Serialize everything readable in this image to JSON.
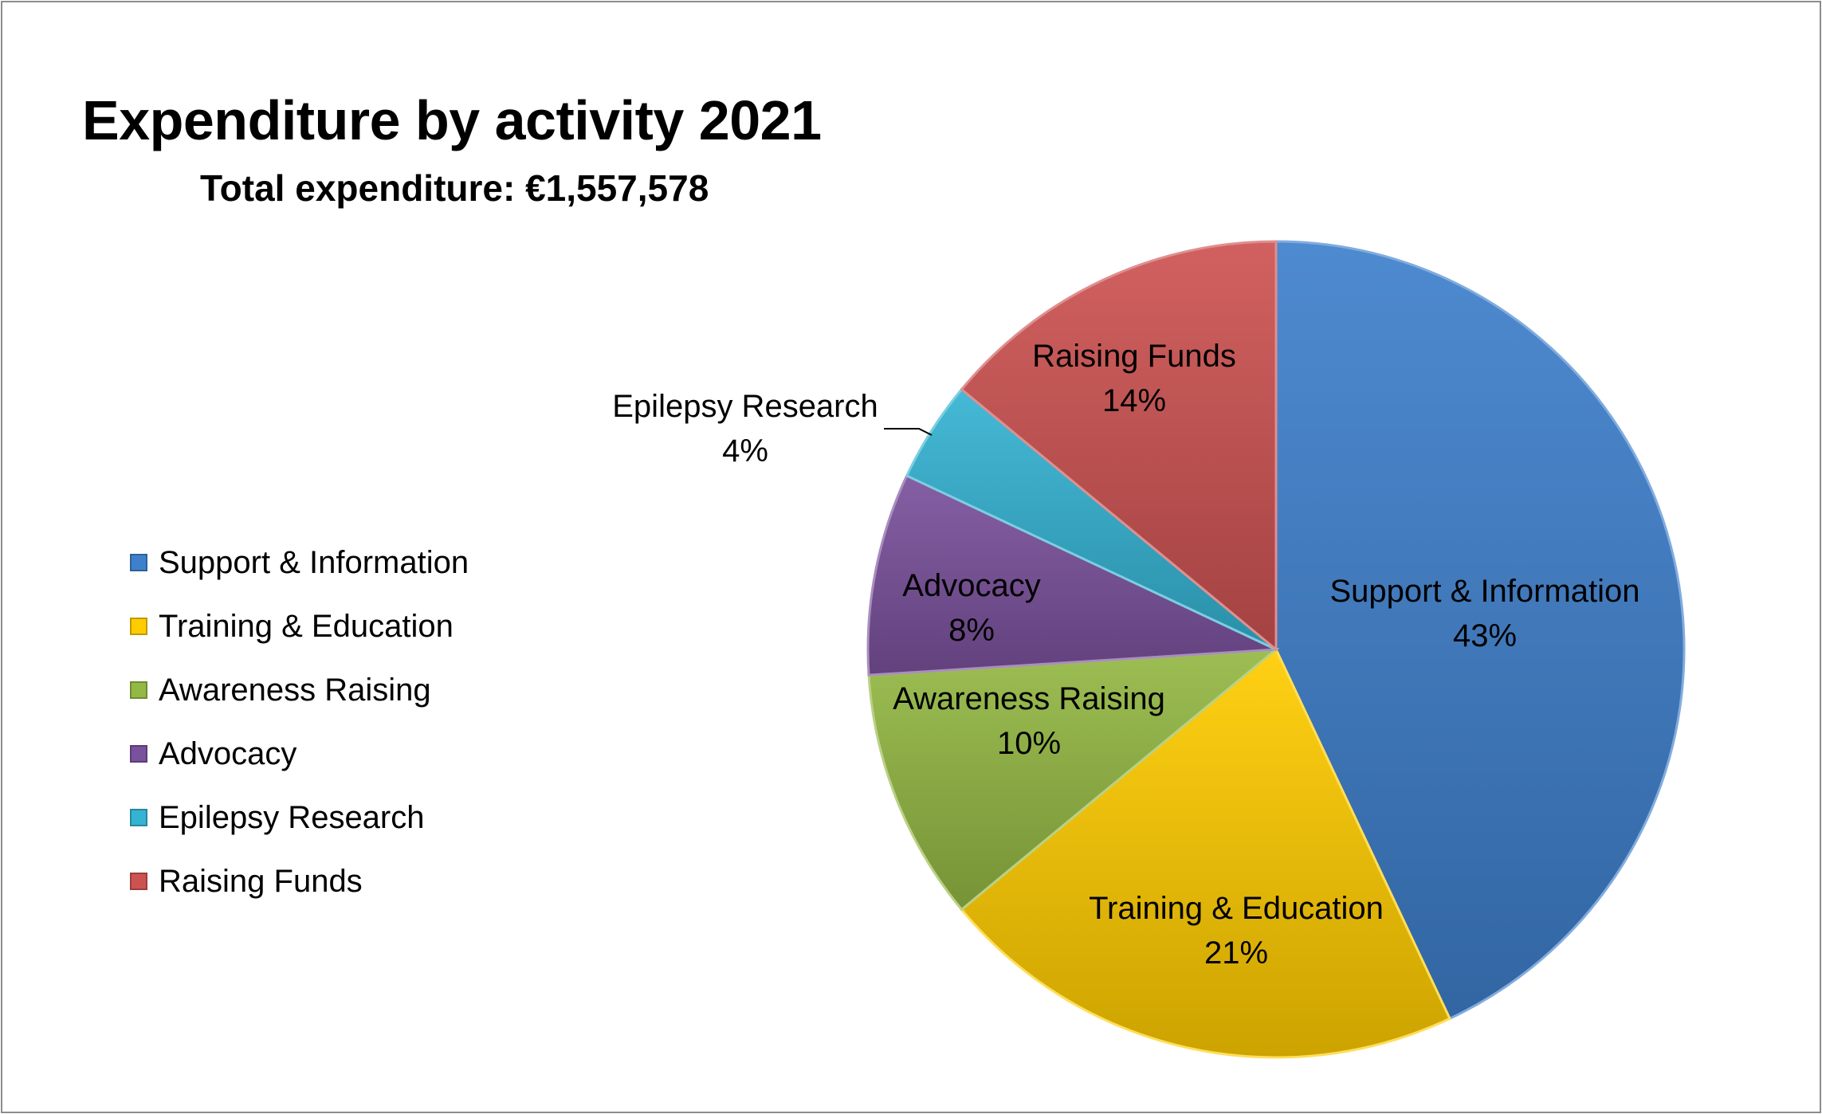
{
  "chart_data": {
    "type": "pie",
    "title": "Expenditure by activity 2021",
    "subtitle": "Total expenditure: €1,557,578",
    "categories": [
      "Support & Information",
      "Training & Education",
      "Awareness Raising",
      "Advocacy",
      "Epilepsy Research",
      "Raising Funds"
    ],
    "values": [
      43,
      21,
      10,
      8,
      4,
      14
    ],
    "value_labels": [
      "43%",
      "21%",
      "10%",
      "8%",
      "4%",
      "14%"
    ],
    "colors": [
      "#3f80cc",
      "#ffcc00",
      "#94b844",
      "#7a519c",
      "#35b3d2",
      "#cd5352"
    ],
    "legend_position": "left",
    "start_angle_deg": 0,
    "direction": "clockwise"
  }
}
